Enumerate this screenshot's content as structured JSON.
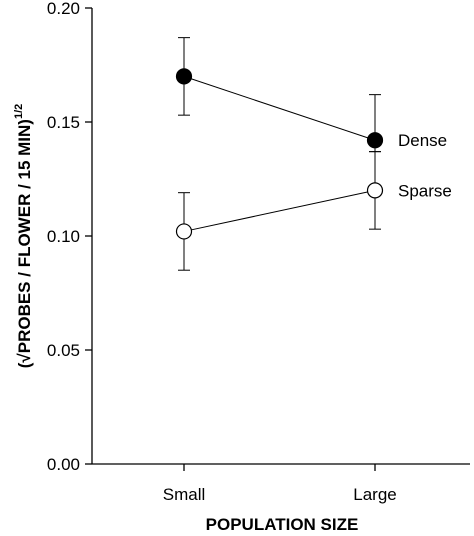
{
  "chart_data": {
    "type": "line",
    "categories": [
      "Small",
      "Large"
    ],
    "xlabel": "POPULATION SIZE",
    "ylabel_main": "(√PROBES / FLOWER / 15 MIN)",
    "ylabel_exponent": "1/2",
    "ylim": [
      0.0,
      0.2
    ],
    "yticks": [
      0.0,
      0.05,
      0.1,
      0.15,
      0.2
    ],
    "ytick_labels": [
      "0.00",
      "0.05",
      "0.10",
      "0.15",
      "0.20"
    ],
    "grid": false,
    "series": [
      {
        "name": "Dense",
        "values": [
          0.17,
          0.142
        ],
        "err_low": [
          0.153,
          0.137
        ],
        "err_high": [
          0.187,
          0.162
        ],
        "marker": "filled-circle",
        "color": "#000000"
      },
      {
        "name": "Sparse",
        "values": [
          0.102,
          0.12
        ],
        "err_low": [
          0.085,
          0.103
        ],
        "err_high": [
          0.119,
          0.137
        ],
        "marker": "open-circle",
        "color": "#000000"
      }
    ]
  }
}
